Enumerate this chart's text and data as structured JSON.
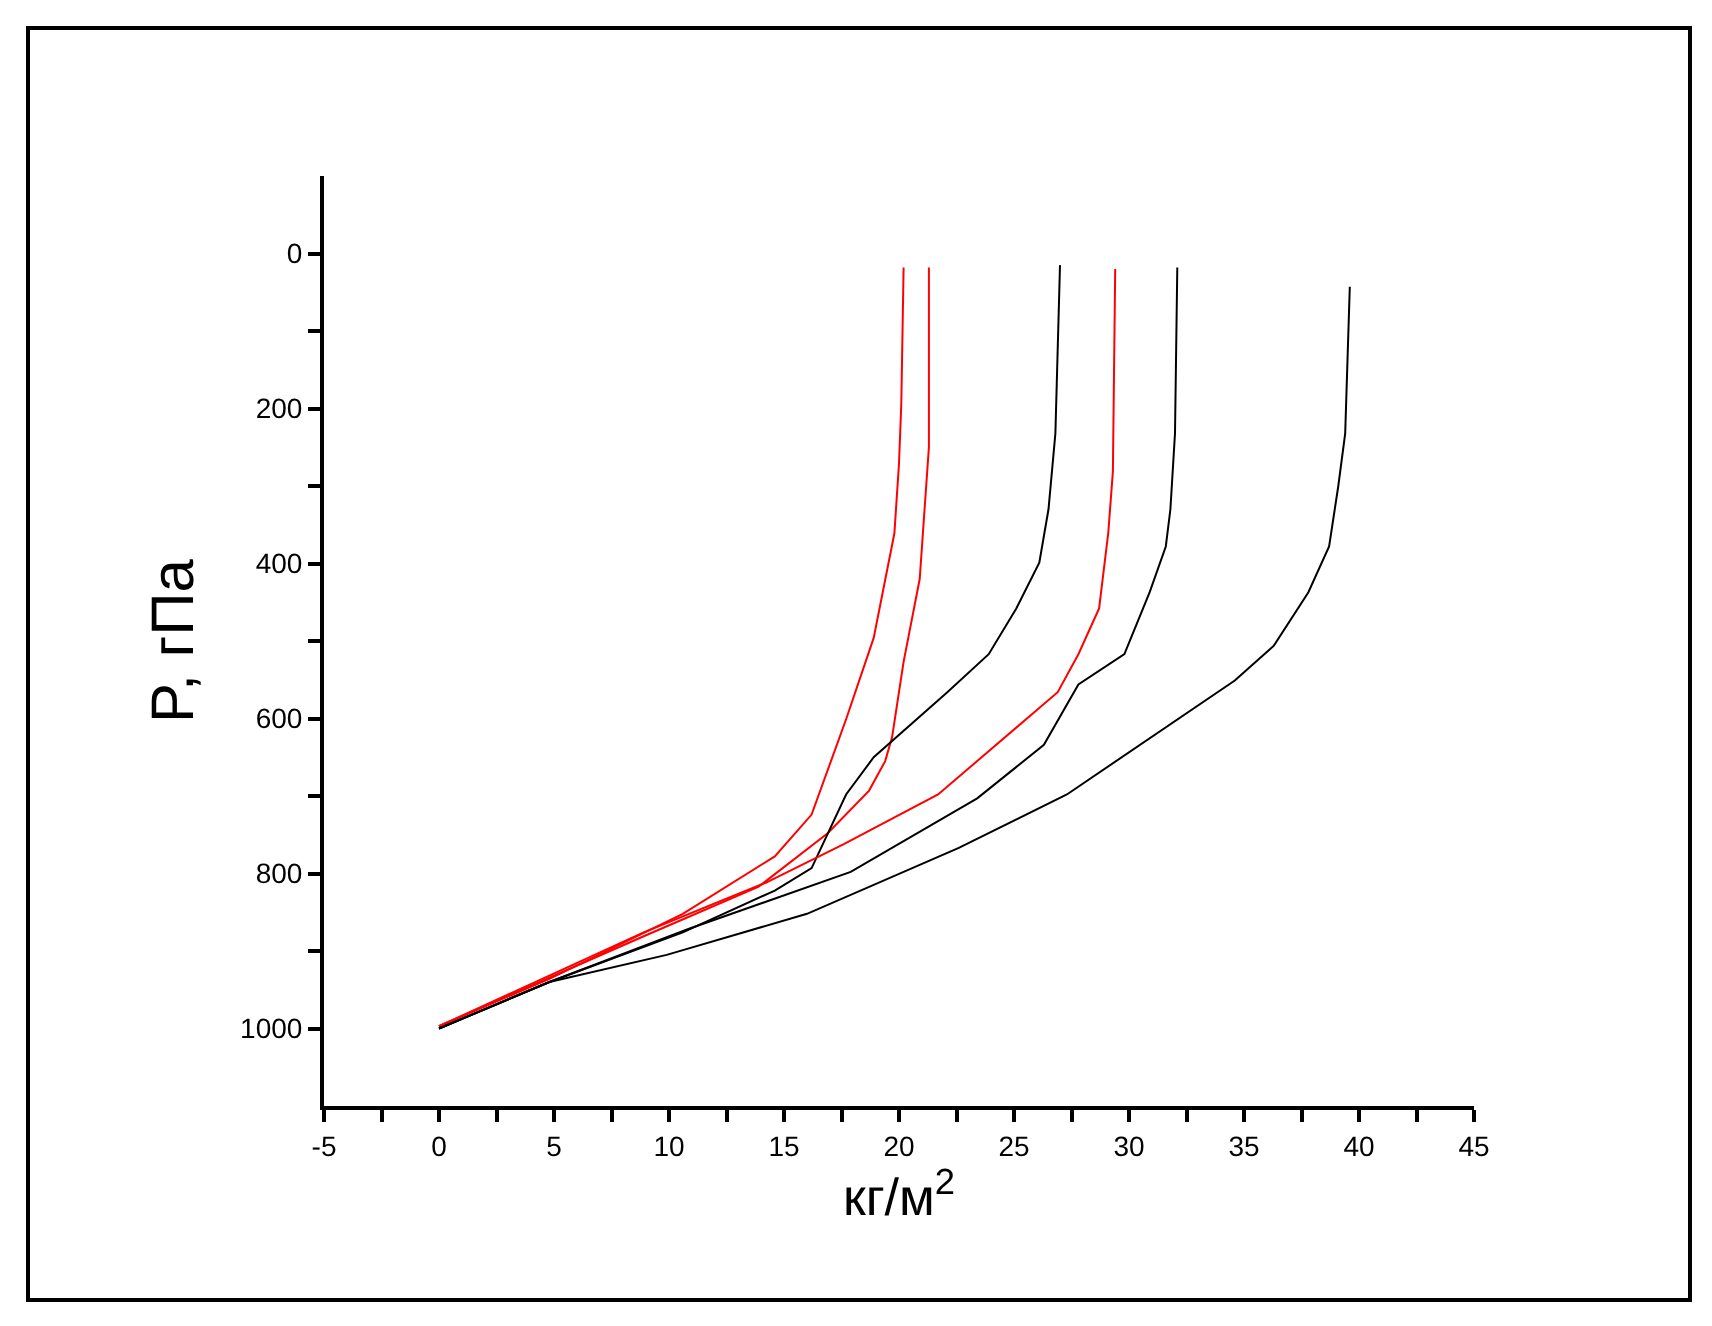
{
  "chart_data": {
    "type": "line",
    "xlabel": "кг/м$^{2}$",
    "ylabel": "P, гПа",
    "xlim": [
      -5,
      45
    ],
    "ylim": [
      1100,
      -100
    ],
    "xticks": [
      -5,
      {
        "value": -2.5,
        "label": null
      },
      0,
      {
        "value": 2.5,
        "label": null
      },
      5,
      {
        "value": 7.5,
        "label": null
      },
      10,
      {
        "value": 12.5,
        "label": null
      },
      15,
      {
        "value": 17.5,
        "label": null
      },
      20,
      {
        "value": 22.5,
        "label": null
      },
      25,
      {
        "value": 27.5,
        "label": null
      },
      30,
      {
        "value": 32.5,
        "label": null
      },
      35,
      {
        "value": 37.5,
        "label": null
      },
      40,
      {
        "value": 42.5,
        "label": null
      },
      45
    ],
    "yticks": [
      0,
      {
        "value": 100,
        "label": null
      },
      200,
      {
        "value": 300,
        "label": null
      },
      400,
      {
        "value": 500,
        "label": null
      },
      600,
      {
        "value": 700,
        "label": null
      },
      800,
      {
        "value": 900,
        "label": null
      },
      1000
    ],
    "grid": false,
    "marker": "none",
    "line_style": "solid",
    "series": [
      {
        "color": "#ff0000",
        "x": [
          0,
          4.8,
          10.6,
          14.6,
          16.2,
          17.7,
          18.9,
          19.8,
          20.0,
          20.1,
          20.2
        ],
        "values": [
          997,
          936,
          852,
          778,
          724,
          601,
          496,
          361,
          271,
          194,
          18
        ]
      },
      {
        "color": "#ff0000",
        "x": [
          0,
          8.9,
          13.9,
          16.9,
          18.7,
          19.4,
          19.7,
          20.2,
          20.9,
          21.3,
          21.3
        ],
        "values": [
          997,
          881,
          817,
          748,
          693,
          655,
          624,
          527,
          420,
          250,
          18
        ]
      },
      {
        "color": "#000000",
        "x": [
          0,
          4.8,
          10.6,
          14.6,
          16.2,
          17.7,
          18.9,
          22.1,
          23.9,
          25.1,
          26.1,
          26.5,
          26.8,
          27.0
        ],
        "values": [
          1000,
          940,
          876,
          822,
          793,
          698,
          650,
          566,
          517,
          458,
          399,
          330,
          232,
          15
        ]
      },
      {
        "color": "#ff0000",
        "x": [
          0,
          8.9,
          14.2,
          17.6,
          21.7,
          26.9,
          27.8,
          28.7,
          29.1,
          29.3,
          29.4
        ],
        "values": [
          997,
          876,
          812,
          762,
          698,
          566,
          517,
          458,
          360,
          281,
          20
        ]
      },
      {
        "color": "#000000",
        "x": [
          0,
          4.8,
          10.9,
          17.9,
          23.4,
          26.3,
          27.8,
          29.8,
          30.9,
          31.6,
          31.8,
          32.0,
          32.1
        ],
        "values": [
          1000,
          940,
          871,
          798,
          703,
          634,
          556,
          517,
          437,
          378,
          330,
          232,
          18
        ]
      },
      {
        "color": "#000000",
        "x": [
          0,
          4.8,
          9.9,
          16.0,
          22.6,
          27.3,
          34.6,
          36.3,
          37.8,
          38.7,
          39.1,
          39.4,
          39.6
        ],
        "values": [
          1000,
          940,
          905,
          852,
          767,
          698,
          551,
          506,
          437,
          378,
          300,
          232,
          43
        ]
      }
    ]
  }
}
